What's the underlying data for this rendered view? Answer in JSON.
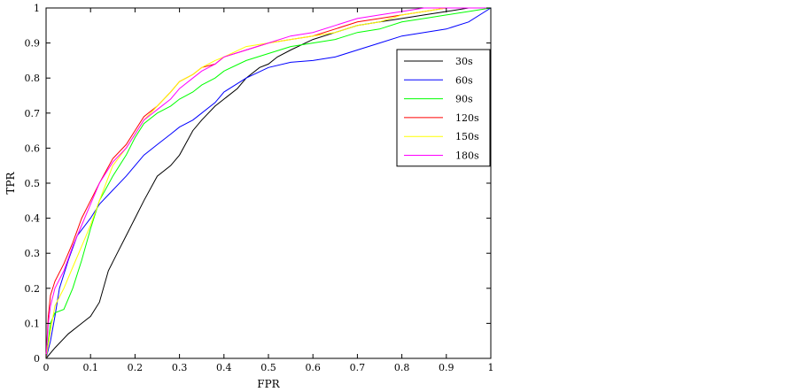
{
  "chart_data": {
    "type": "line",
    "title": "",
    "xlabel": "FPR",
    "ylabel": "TPR",
    "xlim": [
      0,
      1
    ],
    "ylim": [
      0,
      1
    ],
    "xticks": [
      "0",
      "0.1",
      "0.2",
      "0.3",
      "0.4",
      "0.5",
      "0.6",
      "0.7",
      "0.8",
      "0.9",
      "1"
    ],
    "yticks": [
      "0",
      "0.1",
      "0.2",
      "0.3",
      "0.4",
      "0.5",
      "0.6",
      "0.7",
      "0.8",
      "0.9",
      "1"
    ],
    "grid": false,
    "legend_position": "upper-right",
    "series": [
      {
        "name": "30s",
        "color": "#000000",
        "x": [
          0,
          0.02,
          0.05,
          0.08,
          0.1,
          0.12,
          0.14,
          0.16,
          0.18,
          0.2,
          0.22,
          0.25,
          0.28,
          0.3,
          0.33,
          0.35,
          0.38,
          0.4,
          0.43,
          0.45,
          0.48,
          0.5,
          0.52,
          0.55,
          0.6,
          0.65,
          0.7,
          0.75,
          0.8,
          0.85,
          0.9,
          0.95,
          1
        ],
        "y": [
          0,
          0.03,
          0.07,
          0.1,
          0.12,
          0.16,
          0.25,
          0.3,
          0.35,
          0.4,
          0.45,
          0.52,
          0.55,
          0.58,
          0.65,
          0.68,
          0.72,
          0.74,
          0.77,
          0.8,
          0.83,
          0.84,
          0.86,
          0.88,
          0.91,
          0.93,
          0.95,
          0.96,
          0.97,
          0.98,
          0.99,
          1.0,
          1.0
        ]
      },
      {
        "name": "60s",
        "color": "#0000ff",
        "x": [
          0,
          0.01,
          0.02,
          0.03,
          0.05,
          0.07,
          0.1,
          0.12,
          0.15,
          0.18,
          0.2,
          0.22,
          0.25,
          0.28,
          0.3,
          0.33,
          0.35,
          0.38,
          0.4,
          0.45,
          0.5,
          0.55,
          0.6,
          0.65,
          0.7,
          0.75,
          0.8,
          0.85,
          0.9,
          0.95,
          1
        ],
        "y": [
          0,
          0.05,
          0.12,
          0.2,
          0.28,
          0.35,
          0.4,
          0.44,
          0.48,
          0.52,
          0.55,
          0.58,
          0.61,
          0.64,
          0.66,
          0.68,
          0.7,
          0.73,
          0.76,
          0.8,
          0.83,
          0.845,
          0.85,
          0.86,
          0.88,
          0.9,
          0.92,
          0.93,
          0.94,
          0.96,
          1.0
        ]
      },
      {
        "name": "90s",
        "color": "#00ff00",
        "x": [
          0,
          0.01,
          0.02,
          0.04,
          0.06,
          0.08,
          0.1,
          0.12,
          0.15,
          0.18,
          0.2,
          0.22,
          0.25,
          0.28,
          0.3,
          0.33,
          0.35,
          0.38,
          0.4,
          0.45,
          0.5,
          0.55,
          0.6,
          0.65,
          0.7,
          0.75,
          0.8,
          0.85,
          0.9,
          0.95,
          1
        ],
        "y": [
          0,
          0.1,
          0.13,
          0.14,
          0.2,
          0.28,
          0.37,
          0.45,
          0.52,
          0.58,
          0.63,
          0.67,
          0.7,
          0.72,
          0.74,
          0.76,
          0.78,
          0.8,
          0.82,
          0.85,
          0.87,
          0.89,
          0.9,
          0.91,
          0.93,
          0.94,
          0.96,
          0.97,
          0.98,
          0.99,
          1.0
        ]
      },
      {
        "name": "120s",
        "color": "#ff0000",
        "x": [
          0,
          0.005,
          0.01,
          0.02,
          0.04,
          0.06,
          0.08,
          0.1,
          0.12,
          0.15,
          0.18,
          0.2,
          0.22,
          0.25,
          0.28,
          0.3,
          0.33,
          0.35,
          0.38,
          0.4,
          0.45,
          0.5,
          0.55,
          0.6,
          0.65,
          0.7,
          0.75,
          0.8,
          0.85,
          0.9,
          0.95,
          1
        ],
        "y": [
          0,
          0.12,
          0.18,
          0.22,
          0.27,
          0.33,
          0.4,
          0.45,
          0.5,
          0.57,
          0.61,
          0.65,
          0.69,
          0.72,
          0.76,
          0.79,
          0.81,
          0.83,
          0.84,
          0.86,
          0.88,
          0.9,
          0.91,
          0.92,
          0.94,
          0.96,
          0.97,
          0.98,
          0.99,
          1.0,
          1.0,
          1.0
        ]
      },
      {
        "name": "150s",
        "color": "#ffff00",
        "x": [
          0,
          0.01,
          0.02,
          0.04,
          0.06,
          0.08,
          0.1,
          0.12,
          0.15,
          0.18,
          0.2,
          0.22,
          0.25,
          0.28,
          0.3,
          0.33,
          0.35,
          0.38,
          0.4,
          0.45,
          0.5,
          0.55,
          0.6,
          0.65,
          0.7,
          0.75,
          0.8,
          0.85,
          0.9,
          0.95,
          1
        ],
        "y": [
          0,
          0.08,
          0.15,
          0.2,
          0.26,
          0.32,
          0.38,
          0.45,
          0.55,
          0.6,
          0.64,
          0.68,
          0.72,
          0.76,
          0.79,
          0.81,
          0.83,
          0.85,
          0.86,
          0.89,
          0.9,
          0.91,
          0.92,
          0.93,
          0.95,
          0.96,
          0.98,
          0.99,
          1.0,
          1.0,
          1.0
        ]
      },
      {
        "name": "180s",
        "color": "#ff00ff",
        "x": [
          0,
          0.005,
          0.01,
          0.02,
          0.04,
          0.06,
          0.08,
          0.1,
          0.12,
          0.15,
          0.18,
          0.2,
          0.22,
          0.25,
          0.28,
          0.3,
          0.33,
          0.35,
          0.38,
          0.4,
          0.45,
          0.5,
          0.55,
          0.6,
          0.65,
          0.7,
          0.75,
          0.8,
          0.85,
          0.9,
          0.95,
          1
        ],
        "y": [
          0,
          0.1,
          0.15,
          0.2,
          0.25,
          0.32,
          0.38,
          0.44,
          0.5,
          0.56,
          0.6,
          0.64,
          0.68,
          0.71,
          0.74,
          0.77,
          0.8,
          0.82,
          0.84,
          0.86,
          0.88,
          0.9,
          0.92,
          0.93,
          0.95,
          0.97,
          0.98,
          0.99,
          1.0,
          1.0,
          1.0,
          1.0
        ]
      }
    ]
  }
}
